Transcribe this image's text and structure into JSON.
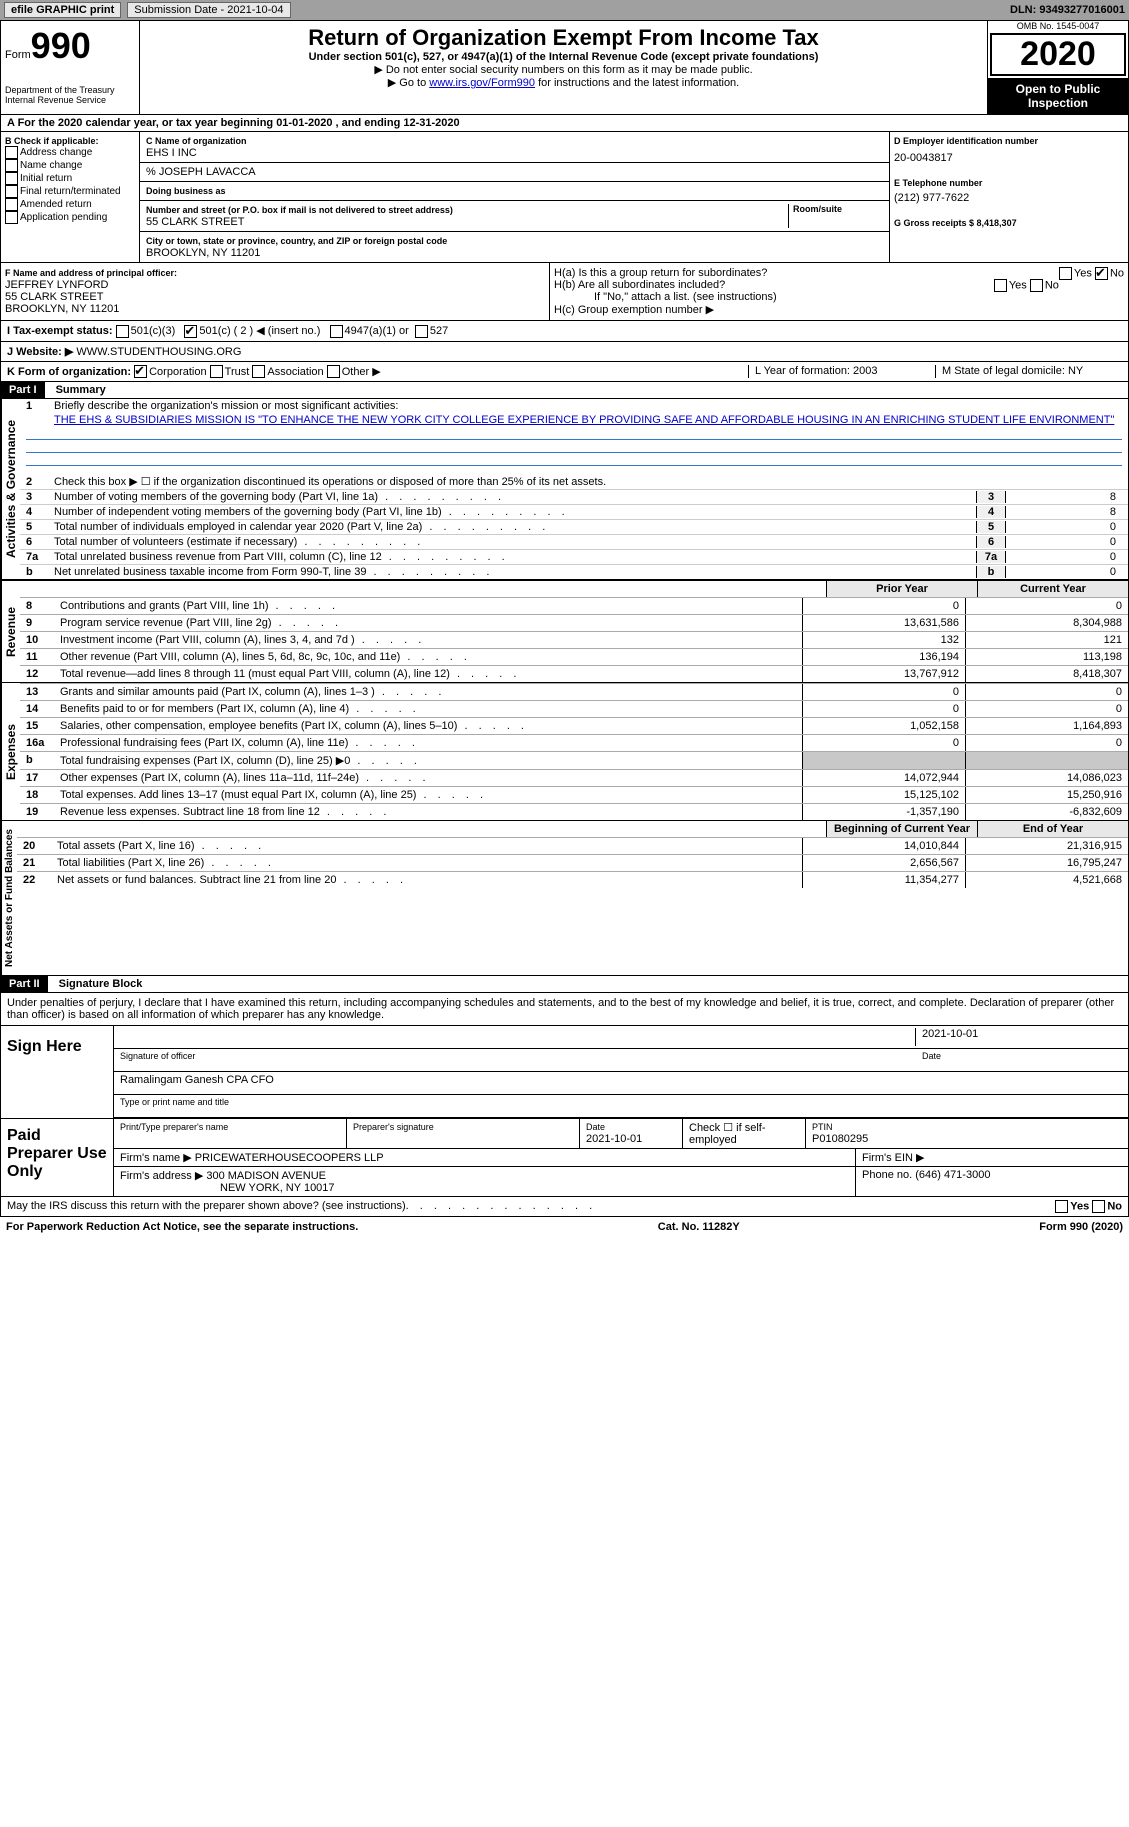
{
  "topbar": {
    "efile": "efile GRAPHIC print",
    "submission_label": "Submission Date - 2021-10-04",
    "dln": "DLN: 93493277016001"
  },
  "header": {
    "form_label": "Form",
    "form_no": "990",
    "dept": "Department of the Treasury\nInternal Revenue Service",
    "title": "Return of Organization Exempt From Income Tax",
    "subtitle": "Under section 501(c), 527, or 4947(a)(1) of the Internal Revenue Code (except private foundations)",
    "note1": "▶ Do not enter social security numbers on this form as it may be made public.",
    "note2_pre": "▶ Go to ",
    "note2_link": "www.irs.gov/Form990",
    "note2_post": " for instructions and the latest information.",
    "omb": "OMB No. 1545-0047",
    "year": "2020",
    "open": "Open to Public Inspection"
  },
  "row_a": "A For the 2020 calendar year, or tax year beginning 01-01-2020   , and ending 12-31-2020",
  "col_b": {
    "header": "B Check if applicable:",
    "items": [
      "Address change",
      "Name change",
      "Initial return",
      "Final return/terminated",
      "Amended return",
      "Application pending"
    ]
  },
  "col_c": {
    "name_lbl": "C Name of organization",
    "name": "EHS I INC",
    "care_of": "% JOSEPH LAVACCA",
    "dba_lbl": "Doing business as",
    "addr_lbl": "Number and street (or P.O. box if mail is not delivered to street address)",
    "room_lbl": "Room/suite",
    "addr": "55 CLARK STREET",
    "city_lbl": "City or town, state or province, country, and ZIP or foreign postal code",
    "city": "BROOKLYN, NY  11201"
  },
  "col_d": {
    "ein_lbl": "D Employer identification number",
    "ein": "20-0043817",
    "tel_lbl": "E Telephone number",
    "tel": "(212) 977-7622",
    "gross_lbl": "G Gross receipts $ 8,418,307"
  },
  "col_f": {
    "lbl": "F Name and address of principal officer:",
    "name": "JEFFREY LYNFORD",
    "addr1": "55 CLARK STREET",
    "addr2": "BROOKLYN, NY  11201"
  },
  "col_h": {
    "ha": "H(a)  Is this a group return for subordinates?",
    "hb": "H(b)  Are all subordinates included?",
    "hb_note": "If \"No,\" attach a list. (see instructions)",
    "hc": "H(c)  Group exemption number ▶",
    "yes": "Yes",
    "no": "No"
  },
  "row_i": {
    "lbl": "I   Tax-exempt status:",
    "o1": "501(c)(3)",
    "o2": "501(c) ( 2 ) ◀ (insert no.)",
    "o3": "4947(a)(1) or",
    "o4": "527"
  },
  "row_j": {
    "lbl": "J   Website: ▶",
    "val": "WWW.STUDENTHOUSING.ORG"
  },
  "row_k": {
    "lbl": "K Form of organization:",
    "o1": "Corporation",
    "o2": "Trust",
    "o3": "Association",
    "o4": "Other ▶",
    "l_lbl": "L Year of formation: 2003",
    "m_lbl": "M State of legal domicile: NY"
  },
  "part1": {
    "label": "Part I",
    "title": "Summary",
    "q1": "Briefly describe the organization's mission or most significant activities:",
    "mission": "THE EHS & SUBSIDIARIES MISSION IS \"TO ENHANCE THE NEW YORK CITY COLLEGE EXPERIENCE BY PROVIDING SAFE AND AFFORDABLE HOUSING IN AN ENRICHING STUDENT LIFE ENVIRONMENT\"",
    "q2": "Check this box ▶ ☐  if the organization discontinued its operations or disposed of more than 25% of its net assets.",
    "side_ag": "Activities & Governance",
    "side_rev": "Revenue",
    "side_exp": "Expenses",
    "side_na": "Net Assets or Fund Balances",
    "lines_ag": [
      {
        "n": "3",
        "t": "Number of voting members of the governing body (Part VI, line 1a)",
        "v": "8"
      },
      {
        "n": "4",
        "t": "Number of independent voting members of the governing body (Part VI, line 1b)",
        "v": "8"
      },
      {
        "n": "5",
        "t": "Total number of individuals employed in calendar year 2020 (Part V, line 2a)",
        "v": "0"
      },
      {
        "n": "6",
        "t": "Total number of volunteers (estimate if necessary)",
        "v": "0"
      },
      {
        "n": "7a",
        "t": "Total unrelated business revenue from Part VIII, column (C), line 12",
        "v": "0"
      },
      {
        "n": "b",
        "t": "Net unrelated business taxable income from Form 990-T, line 39",
        "v": "0"
      }
    ],
    "col_py": "Prior Year",
    "col_cy": "Current Year",
    "col_bcy": "Beginning of Current Year",
    "col_eoy": "End of Year",
    "lines_rev": [
      {
        "n": "8",
        "t": "Contributions and grants (Part VIII, line 1h)",
        "py": "0",
        "cy": "0"
      },
      {
        "n": "9",
        "t": "Program service revenue (Part VIII, line 2g)",
        "py": "13,631,586",
        "cy": "8,304,988"
      },
      {
        "n": "10",
        "t": "Investment income (Part VIII, column (A), lines 3, 4, and 7d )",
        "py": "132",
        "cy": "121"
      },
      {
        "n": "11",
        "t": "Other revenue (Part VIII, column (A), lines 5, 6d, 8c, 9c, 10c, and 11e)",
        "py": "136,194",
        "cy": "113,198"
      },
      {
        "n": "12",
        "t": "Total revenue—add lines 8 through 11 (must equal Part VIII, column (A), line 12)",
        "py": "13,767,912",
        "cy": "8,418,307"
      }
    ],
    "lines_exp": [
      {
        "n": "13",
        "t": "Grants and similar amounts paid (Part IX, column (A), lines 1–3 )",
        "py": "0",
        "cy": "0"
      },
      {
        "n": "14",
        "t": "Benefits paid to or for members (Part IX, column (A), line 4)",
        "py": "0",
        "cy": "0"
      },
      {
        "n": "15",
        "t": "Salaries, other compensation, employee benefits (Part IX, column (A), lines 5–10)",
        "py": "1,052,158",
        "cy": "1,164,893"
      },
      {
        "n": "16a",
        "t": "Professional fundraising fees (Part IX, column (A), line 11e)",
        "py": "0",
        "cy": "0"
      },
      {
        "n": "b",
        "t": "Total fundraising expenses (Part IX, column (D), line 25) ▶0",
        "py": "",
        "cy": "",
        "shade": true
      },
      {
        "n": "17",
        "t": "Other expenses (Part IX, column (A), lines 11a–11d, 11f–24e)",
        "py": "14,072,944",
        "cy": "14,086,023"
      },
      {
        "n": "18",
        "t": "Total expenses. Add lines 13–17 (must equal Part IX, column (A), line 25)",
        "py": "15,125,102",
        "cy": "15,250,916"
      },
      {
        "n": "19",
        "t": "Revenue less expenses. Subtract line 18 from line 12",
        "py": "-1,357,190",
        "cy": "-6,832,609"
      }
    ],
    "lines_na": [
      {
        "n": "20",
        "t": "Total assets (Part X, line 16)",
        "py": "14,010,844",
        "cy": "21,316,915"
      },
      {
        "n": "21",
        "t": "Total liabilities (Part X, line 26)",
        "py": "2,656,567",
        "cy": "16,795,247"
      },
      {
        "n": "22",
        "t": "Net assets or fund balances. Subtract line 21 from line 20",
        "py": "11,354,277",
        "cy": "4,521,668"
      }
    ]
  },
  "part2": {
    "label": "Part II",
    "title": "Signature Block",
    "decl": "Under penalties of perjury, I declare that I have examined this return, including accompanying schedules and statements, and to the best of my knowledge and belief, it is true, correct, and complete. Declaration of preparer (other than officer) is based on all information of which preparer has any knowledge.",
    "sign_here": "Sign Here",
    "sig_officer": "Signature of officer",
    "sig_date": "2021-10-01",
    "date_lbl": "Date",
    "name_title": "Ramalingam Ganesh CPA CFO",
    "name_title_lbl": "Type or print name and title",
    "paid": "Paid Preparer Use Only",
    "prep_name_lbl": "Print/Type preparer's name",
    "prep_sig_lbl": "Preparer's signature",
    "prep_date_lbl": "Date",
    "prep_date": "2021-10-01",
    "self_emp": "Check ☐ if self-employed",
    "ptin_lbl": "PTIN",
    "ptin": "P01080295",
    "firm_name_lbl": "Firm's name   ▶",
    "firm_name": "PRICEWATERHOUSECOOPERS LLP",
    "firm_ein_lbl": "Firm's EIN ▶",
    "firm_addr_lbl": "Firm's address ▶",
    "firm_addr1": "300 MADISON AVENUE",
    "firm_addr2": "NEW YORK, NY  10017",
    "phone_lbl": "Phone no. (646) 471-3000",
    "discuss": "May the IRS discuss this return with the preparer shown above? (see instructions)"
  },
  "footer": {
    "left": "For Paperwork Reduction Act Notice, see the separate instructions.",
    "mid": "Cat. No. 11282Y",
    "right": "Form 990 (2020)"
  }
}
